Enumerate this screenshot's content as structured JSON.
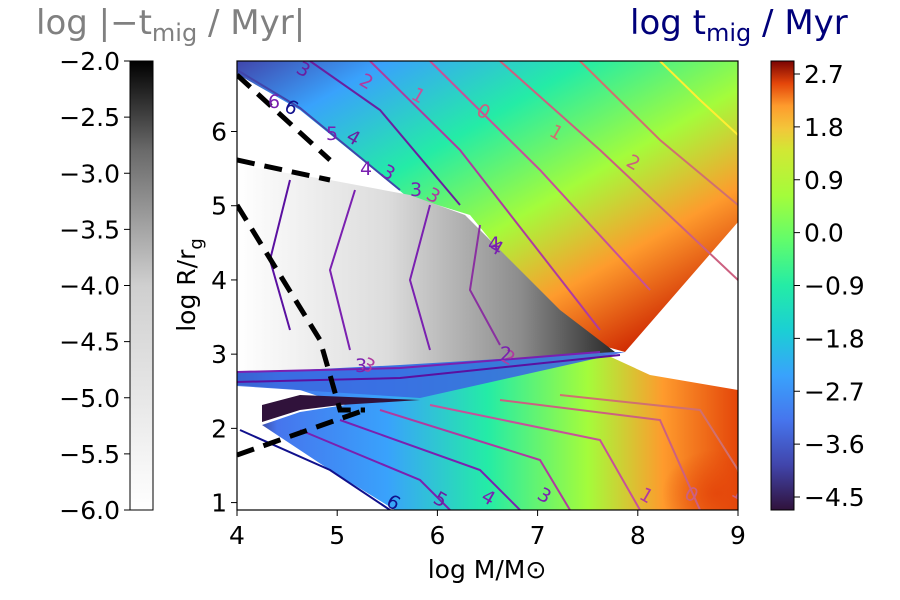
{
  "chart_data": {
    "type": "contour",
    "xlabel": "log  M/M⊙",
    "ylabel": "log R/r_g",
    "xlim": [
      4,
      9
    ],
    "ylim": [
      0.9,
      6.95
    ],
    "x_ticks": [
      "4",
      "5",
      "6",
      "7",
      "8",
      "9"
    ],
    "y_ticks": [
      "1",
      "2",
      "3",
      "4",
      "5",
      "6"
    ],
    "left_colorbar": {
      "title": "log  |−t_mig / Myr|",
      "title_color": "#808080",
      "colormap": "gray_r",
      "range": [
        -6.0,
        -2.0
      ],
      "ticks": [
        "−2.0",
        "−2.5",
        "−3.0",
        "−3.5",
        "−4.0",
        "−4.5",
        "−5.0",
        "−5.5",
        "−6.0"
      ]
    },
    "right_colorbar": {
      "title": "log  t_mig / Myr",
      "title_color": "#00007a",
      "colormap": "turbo",
      "range": [
        -5.0,
        3.1
      ],
      "ticks": [
        "2.7",
        "1.8",
        "0.9",
        "0.0",
        "−0.9",
        "−1.8",
        "−2.7",
        "−3.6",
        "−4.5"
      ]
    },
    "positive_contour_labels": [
      "3",
      "2",
      "1",
      "0",
      "1",
      "2",
      "6",
      "4",
      "3",
      "3",
      "4",
      "2",
      "3",
      "6",
      "5",
      "4",
      "3",
      "1",
      "0",
      "1",
      "1"
    ],
    "negative_contour_labels": [
      "6",
      "5",
      "4",
      "3",
      "4",
      "3",
      "2"
    ]
  }
}
